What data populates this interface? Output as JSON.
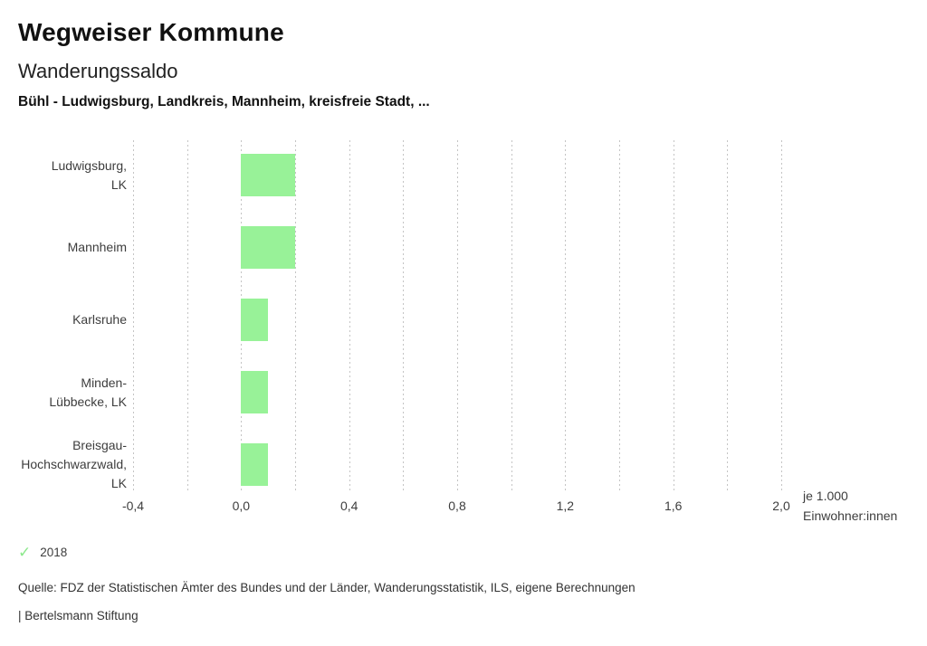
{
  "header": {
    "title": "Wegweiser Kommune",
    "subtitle": "Wanderungssaldo",
    "selection": "Bühl - Ludwigsburg, Landkreis, Mannheim, kreisfreie Stadt, ..."
  },
  "chart_data": {
    "type": "bar",
    "orientation": "horizontal",
    "title": "Wanderungssaldo",
    "categories": [
      [
        "Ludwigsburg,",
        "LK"
      ],
      [
        "Mannheim"
      ],
      [
        "Karlsruhe"
      ],
      [
        "Minden-",
        "Lübbecke, LK"
      ],
      [
        "Breisgau-",
        "Hochschwarzwald,",
        "LK"
      ]
    ],
    "series": [
      {
        "name": "2018",
        "values": [
          0.2,
          0.2,
          0.1,
          0.1,
          0.1
        ]
      }
    ],
    "xlim": [
      -0.4,
      2.0
    ],
    "grid_step": 0.2,
    "xtick_values": [
      -0.4,
      0.0,
      0.4,
      0.8,
      1.2,
      1.6,
      2.0
    ],
    "xtick_labels": [
      "-0,4",
      "0,0",
      "0,4",
      "0,8",
      "1,2",
      "1,6",
      "2,0"
    ],
    "unit_label": "je 1.000\nEinwohner:innen",
    "bar_color": "#98f298",
    "gridline_color": "#c4c4c4",
    "grid": "dotted-vertical",
    "legend_position": "bottom-left"
  },
  "legend": {
    "check_icon": "✓",
    "check_color": "#8ce88c",
    "year": "2018"
  },
  "footer": {
    "source": "Quelle: FDZ der Statistischen Ämter des Bundes und der Länder, Wanderungsstatistik, ILS, eigene Berechnungen",
    "branding": "| Bertelsmann Stiftung"
  }
}
